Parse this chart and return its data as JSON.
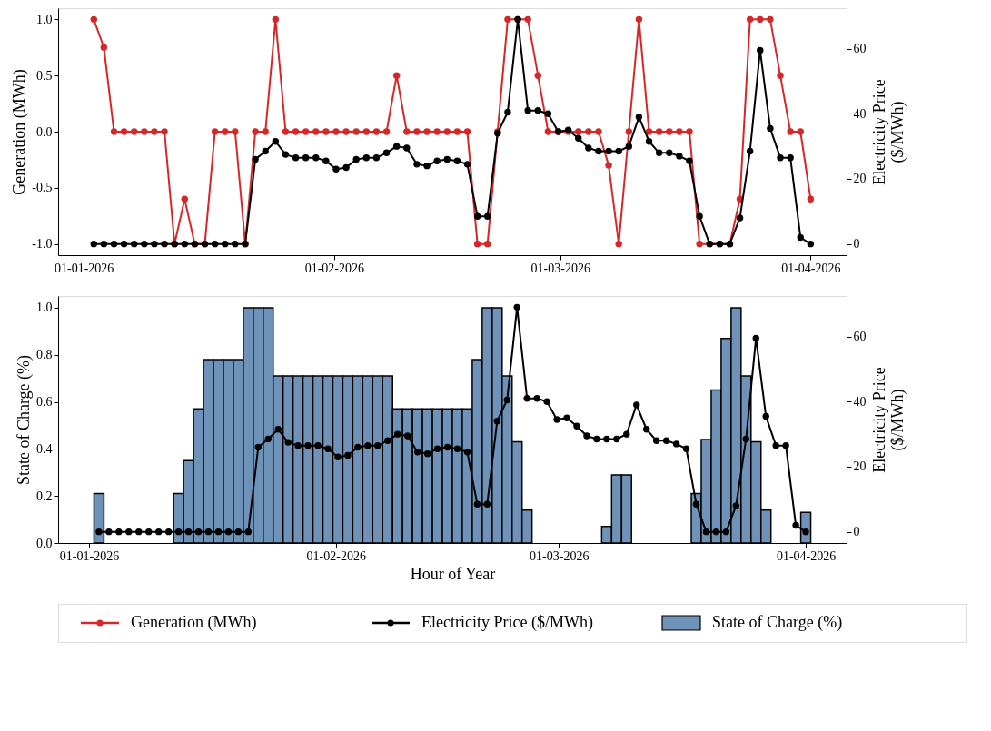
{
  "chart_data": [
    {
      "type": "line",
      "x": [
        "2026-01-02T06:00",
        "2026-01-03T12:00",
        "2026-01-04T18:00",
        "2026-01-06T00:00",
        "2026-01-07T06:00",
        "2026-01-08T12:00",
        "2026-01-09T18:00",
        "2026-01-11T00:00",
        "2026-01-12T06:00",
        "2026-01-13T12:00",
        "2026-01-14T18:00",
        "2026-01-16T00:00",
        "2026-01-17T06:00",
        "2026-01-18T12:00",
        "2026-01-19T18:00",
        "2026-01-21T00:00",
        "2026-01-22T06:00",
        "2026-01-23T12:00",
        "2026-01-24T18:00",
        "2026-01-26T00:00",
        "2026-01-27T06:00",
        "2026-01-28T12:00",
        "2026-01-29T18:00",
        "2026-01-31T00:00",
        "2026-02-01T06:00",
        "2026-02-02T12:00",
        "2026-02-03T18:00",
        "2026-02-05T00:00",
        "2026-02-06T06:00",
        "2026-02-07T12:00",
        "2026-02-08T18:00",
        "2026-02-10T00:00",
        "2026-02-11T06:00",
        "2026-02-12T12:00",
        "2026-02-13T18:00",
        "2026-02-15T00:00",
        "2026-02-16T06:00",
        "2026-02-17T12:00",
        "2026-02-18T18:00",
        "2026-02-20T00:00",
        "2026-02-21T06:00",
        "2026-02-22T12:00",
        "2026-02-23T18:00",
        "2026-02-25T00:00",
        "2026-02-26T06:00",
        "2026-02-27T12:00",
        "2026-02-28T18:00",
        "2026-03-02T00:00",
        "2026-03-03T06:00",
        "2026-03-04T12:00",
        "2026-03-05T18:00",
        "2026-03-07T00:00",
        "2026-03-08T06:00",
        "2026-03-09T12:00",
        "2026-03-10T18:00",
        "2026-03-12T00:00",
        "2026-03-13T06:00",
        "2026-03-14T12:00",
        "2026-03-15T18:00",
        "2026-03-17T00:00",
        "2026-03-18T06:00",
        "2026-03-19T12:00",
        "2026-03-20T18:00",
        "2026-03-22T00:00",
        "2026-03-23T06:00",
        "2026-03-24T12:00",
        "2026-03-25T18:00",
        "2026-03-27T00:00",
        "2026-03-28T06:00",
        "2026-03-29T12:00",
        "2026-03-30T18:00",
        "2026-04-01T00:00"
      ],
      "series": [
        {
          "name": "Generation (MWh)",
          "color": "#d62728",
          "values": [
            1,
            0.75,
            0,
            0,
            0,
            0,
            0,
            0,
            -1,
            -0.6,
            -1,
            -1,
            0,
            0,
            0,
            -1,
            0,
            0,
            1,
            0,
            0,
            0,
            0,
            0,
            0,
            0,
            0,
            0,
            0,
            0,
            0.5,
            0,
            0,
            0,
            0,
            0,
            0,
            0,
            -1,
            -1,
            0,
            1,
            1,
            1,
            0.5,
            0,
            0,
            0,
            0,
            0,
            0,
            -0.3,
            -1,
            0,
            1,
            0,
            0,
            0,
            0,
            0,
            -1,
            -1,
            -1,
            -1,
            -0.6,
            1,
            1,
            1,
            0.5,
            0,
            0,
            -0.6
          ]
        },
        {
          "name": "Electricity Price ($/MWh)",
          "color": "#000000",
          "axis": "y2",
          "values": [
            0,
            0,
            0,
            0,
            0,
            0,
            0,
            0,
            0,
            0,
            0,
            0,
            0,
            0,
            0,
            0,
            26,
            28.5,
            31.5,
            27.5,
            26.5,
            26.5,
            26.5,
            25.5,
            23,
            23.5,
            26,
            26.5,
            26.5,
            28,
            30,
            29.5,
            24.5,
            24,
            25.5,
            26,
            25.5,
            24.5,
            8.5,
            8.5,
            34,
            40.5,
            69,
            41,
            41,
            40,
            34.5,
            35,
            32.5,
            29.5,
            28.5,
            28.5,
            28.5,
            30,
            39,
            31.5,
            28,
            28,
            27,
            25.5,
            8.5,
            0,
            0,
            0,
            8,
            28.5,
            59.5,
            35.5,
            26.5,
            26.5,
            2,
            0
          ]
        }
      ],
      "ylabel": "Generation (MWh)",
      "y2label": "Electricity Price ($/MWh)",
      "xlim": [
        "2025-12-28T20:00",
        "2026-04-05T11:00"
      ],
      "xticks": [
        {
          "value": "2026-01-01",
          "label": "01-01-2026"
        },
        {
          "value": "2026-02-01",
          "label": "01-02-2026"
        },
        {
          "value": "2026-03-01",
          "label": "01-03-2026"
        },
        {
          "value": "2026-04-01",
          "label": "01-04-2026"
        }
      ],
      "ylim": [
        -1.1,
        1.1
      ],
      "yticks": [
        {
          "value": -1,
          "label": "-1.0"
        },
        {
          "value": -0.5,
          "label": "-0.5"
        },
        {
          "value": 0,
          "label": "0.0"
        },
        {
          "value": 0.5,
          "label": "0.5"
        },
        {
          "value": 1,
          "label": "1.0"
        }
      ],
      "y2lim": [
        -3.45,
        72.45
      ],
      "y2ticks": [
        0,
        20,
        40,
        60
      ],
      "marker": "circle",
      "line_style": "solid",
      "legend": "bottom"
    },
    {
      "type": "bar",
      "x": [
        "2026-01-02T06:00",
        "2026-01-03T12:00",
        "2026-01-04T18:00",
        "2026-01-06T00:00",
        "2026-01-07T06:00",
        "2026-01-08T12:00",
        "2026-01-09T18:00",
        "2026-01-11T00:00",
        "2026-01-12T06:00",
        "2026-01-13T12:00",
        "2026-01-14T18:00",
        "2026-01-16T00:00",
        "2026-01-17T06:00",
        "2026-01-18T12:00",
        "2026-01-19T18:00",
        "2026-01-21T00:00",
        "2026-01-22T06:00",
        "2026-01-23T12:00",
        "2026-01-24T18:00",
        "2026-01-26T00:00",
        "2026-01-27T06:00",
        "2026-01-28T12:00",
        "2026-01-29T18:00",
        "2026-01-31T00:00",
        "2026-02-01T06:00",
        "2026-02-02T12:00",
        "2026-02-03T18:00",
        "2026-02-05T00:00",
        "2026-02-06T06:00",
        "2026-02-07T12:00",
        "2026-02-08T18:00",
        "2026-02-10T00:00",
        "2026-02-11T06:00",
        "2026-02-12T12:00",
        "2026-02-13T18:00",
        "2026-02-15T00:00",
        "2026-02-16T06:00",
        "2026-02-17T12:00",
        "2026-02-18T18:00",
        "2026-02-20T00:00",
        "2026-02-21T06:00",
        "2026-02-22T12:00",
        "2026-02-23T18:00",
        "2026-02-25T00:00",
        "2026-02-26T06:00",
        "2026-02-27T12:00",
        "2026-02-28T18:00",
        "2026-03-02T00:00",
        "2026-03-03T06:00",
        "2026-03-04T12:00",
        "2026-03-05T18:00",
        "2026-03-07T00:00",
        "2026-03-08T06:00",
        "2026-03-09T12:00",
        "2026-03-10T18:00",
        "2026-03-12T00:00",
        "2026-03-13T06:00",
        "2026-03-14T12:00",
        "2026-03-15T18:00",
        "2026-03-17T00:00",
        "2026-03-18T06:00",
        "2026-03-19T12:00",
        "2026-03-20T18:00",
        "2026-03-22T00:00",
        "2026-03-23T06:00",
        "2026-03-24T12:00",
        "2026-03-25T18:00",
        "2026-03-27T00:00",
        "2026-03-28T06:00",
        "2026-03-29T12:00",
        "2026-03-30T18:00",
        "2026-04-01T00:00"
      ],
      "series": [
        {
          "name": "State of Charge (%)",
          "color": "#6f93b8",
          "type": "bar",
          "values": [
            0.21,
            null,
            null,
            null,
            null,
            null,
            null,
            null,
            0.21,
            0.35,
            0.57,
            0.78,
            0.78,
            0.78,
            0.78,
            1,
            1,
            1,
            0.71,
            0.71,
            0.71,
            0.71,
            0.71,
            0.71,
            0.71,
            0.71,
            0.71,
            0.71,
            0.71,
            0.71,
            0.57,
            0.57,
            0.57,
            0.57,
            0.57,
            0.57,
            0.57,
            0.57,
            0.78,
            1,
            1,
            0.71,
            0.43,
            0.14,
            null,
            null,
            null,
            null,
            null,
            null,
            null,
            0.07,
            0.29,
            0.29,
            null,
            null,
            null,
            null,
            null,
            null,
            0.21,
            0.44,
            0.65,
            0.87,
            1,
            0.71,
            0.43,
            0.14,
            null,
            null,
            null,
            0.13
          ]
        },
        {
          "color": "#000000",
          "type": "line",
          "axis": "y2",
          "values": [
            0,
            0,
            0,
            0,
            0,
            0,
            0,
            0,
            0,
            0,
            0,
            0,
            0,
            0,
            0,
            0,
            26,
            28.5,
            31.5,
            27.5,
            26.5,
            26.5,
            26.5,
            25.5,
            23,
            23.5,
            26,
            26.5,
            26.5,
            28,
            30,
            29.5,
            24.5,
            24,
            25.5,
            26,
            25.5,
            24.5,
            8.5,
            8.5,
            34,
            40.5,
            69,
            41,
            41,
            40,
            34.5,
            35,
            32.5,
            29.5,
            28.5,
            28.5,
            28.5,
            30,
            39,
            31.5,
            28,
            28,
            27,
            25.5,
            8.5,
            0,
            0,
            0,
            8,
            28.5,
            59.5,
            35.5,
            26.5,
            26.5,
            2,
            0
          ]
        }
      ],
      "xlabel": "Hour of Year",
      "ylabel": "State of Charge (%)",
      "y2label": "Electricity Price ($/MWh)",
      "xlim": [
        "2025-12-28T03:00",
        "2026-04-06T03:00"
      ],
      "xticks": [
        {
          "value": "2026-01-01",
          "label": "01-01-2026"
        },
        {
          "value": "2026-02-01",
          "label": "01-02-2026"
        },
        {
          "value": "2026-03-01",
          "label": "01-03-2026"
        },
        {
          "value": "2026-04-01",
          "label": "01-04-2026"
        }
      ],
      "ylim": [
        0,
        1.05
      ],
      "yticks": [
        {
          "value": 0,
          "label": "0.0"
        },
        {
          "value": 0.2,
          "label": "0.2"
        },
        {
          "value": 0.4,
          "label": "0.4"
        },
        {
          "value": 0.6,
          "label": "0.6"
        },
        {
          "value": 0.8,
          "label": "0.8"
        },
        {
          "value": 1,
          "label": "1.0"
        }
      ],
      "y2lim": [
        -3.45,
        72.45
      ],
      "y2ticks": [
        0,
        20,
        40,
        60
      ],
      "marker": "circle",
      "line_style": "solid",
      "legend": "bottom"
    }
  ]
}
